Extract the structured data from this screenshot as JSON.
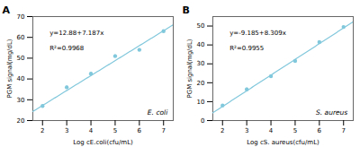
{
  "chart_data": [
    {
      "type": "scatter",
      "title": "A",
      "x_label": "Log cE.coli(cfu/mL)",
      "y_label": "PGM signal(mg/dL)",
      "x": [
        2,
        3,
        4,
        5,
        6,
        7
      ],
      "values": [
        27.0,
        36.0,
        42.5,
        51.0,
        54.0,
        63.0
      ],
      "y_err": [
        0.5,
        0.7,
        0.8,
        0.7,
        0.6,
        0.5
      ],
      "fit_intercept": 12.88,
      "fit_slope": 7.187,
      "color": "#82c8dc",
      "annotations": [
        "y=12.88+7.187x",
        "R²=0.9968",
        "E. coli"
      ],
      "xlim": [
        1.6,
        7.4
      ],
      "xticks": [
        2,
        3,
        4,
        5,
        6,
        7
      ],
      "ylim": [
        20,
        70
      ],
      "yticks": [
        20,
        30,
        40,
        50,
        60,
        70
      ],
      "grid": false
    },
    {
      "type": "scatter",
      "title": "B",
      "x_label": "Log cS. aureus(cfu/mL)",
      "y_label": "PGM signal(mg/dL)",
      "x": [
        2,
        3,
        4,
        5,
        6,
        7
      ],
      "values": [
        8.0,
        16.5,
        23.5,
        31.5,
        41.5,
        49.5
      ],
      "y_err": [
        0.4,
        0.8,
        0.5,
        0.7,
        0.7,
        0.5
      ],
      "fit_intercept": -9.185,
      "fit_slope": 8.309,
      "color": "#82c8dc",
      "annotations": [
        "y=-9.185+8.309x",
        "R²=0.9955",
        "S. aureus"
      ],
      "xlim": [
        1.6,
        7.4
      ],
      "xticks": [
        2,
        3,
        4,
        5,
        6,
        7
      ],
      "ylim": [
        0,
        55
      ],
      "yticks": [
        0,
        10,
        20,
        30,
        40,
        50
      ],
      "grid": false
    }
  ]
}
